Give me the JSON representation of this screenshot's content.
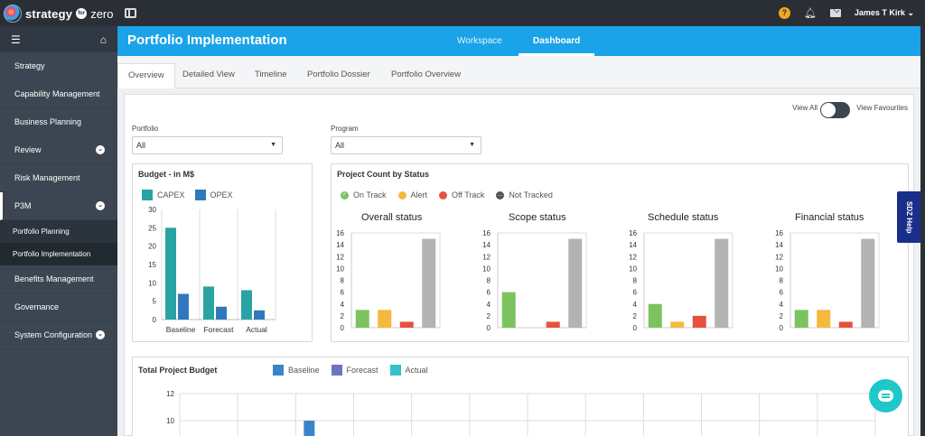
{
  "app": {
    "brand": "strategy",
    "brand_for": "for",
    "brand_zero": "zero"
  },
  "topbar": {
    "help_icon": "question-circle-icon",
    "user_name": "James T Kirk",
    "user_caret": "⌄"
  },
  "sidebar": {
    "items": [
      {
        "label": "Strategy",
        "has_chevron": false
      },
      {
        "label": "Capability Management",
        "has_chevron": false
      },
      {
        "label": "Business Planning",
        "has_chevron": false
      },
      {
        "label": "Review",
        "has_chevron": true
      },
      {
        "label": "Risk Management",
        "has_chevron": false
      },
      {
        "label": "P3M",
        "has_chevron": true,
        "expanded": true
      },
      {
        "label": "Portfolio Planning",
        "sub": true
      },
      {
        "label": "Portfolio Implementation",
        "sub": true,
        "current": true
      },
      {
        "label": "Benefits Management",
        "has_chevron": false
      },
      {
        "label": "Governance",
        "has_chevron": false
      },
      {
        "label": "System Configuration",
        "has_chevron": true
      }
    ]
  },
  "header": {
    "title": "Portfolio Implementation",
    "tabs": [
      {
        "label": "Workspace",
        "active": false
      },
      {
        "label": "Dashboard",
        "active": true
      }
    ]
  },
  "subtabs": [
    {
      "label": "Overview",
      "active": true
    },
    {
      "label": "Detailed View"
    },
    {
      "label": "Timeline"
    },
    {
      "label": "Portfolio Dossier"
    },
    {
      "label": "Portfolio Overview"
    }
  ],
  "filters": {
    "view_all": "View All",
    "view_favourites": "View Favourites",
    "portfolio_label": "Portfolio",
    "portfolio_value": "All",
    "program_label": "Program",
    "program_value": "All"
  },
  "colors": {
    "capex": "#2aa3a3",
    "opex": "#2f78bd",
    "on_track": "#7cc360",
    "alert": "#f4b93d",
    "off_track": "#e8503e",
    "not_tracked": "#b3b3b3",
    "baseline": "#3b84cc",
    "forecast": "#6f74c2",
    "actual": "#33c2c9"
  },
  "budget_card": {
    "title": "Budget - in M$",
    "legend": [
      "CAPEX",
      "OPEX"
    ]
  },
  "status_card": {
    "title": "Project Count by Status",
    "legend": [
      "On Track",
      "Alert",
      "Off Track",
      "Not Tracked"
    ]
  },
  "total_card": {
    "title": "Total Project Budget",
    "legend": [
      "Baseline",
      "Forecast",
      "Actual"
    ]
  },
  "chart_data": [
    {
      "type": "bar",
      "title": "Budget - in M$",
      "categories": [
        "Baseline",
        "Forecast",
        "Actual"
      ],
      "series": [
        {
          "name": "CAPEX",
          "values": [
            25,
            9,
            8
          ]
        },
        {
          "name": "OPEX",
          "values": [
            7,
            3.5,
            2.5
          ]
        }
      ],
      "ylim": [
        0,
        30
      ],
      "yticks": [
        0,
        5,
        10,
        15,
        20,
        25,
        30
      ]
    },
    {
      "type": "bar",
      "title": "Overall status",
      "categories": [
        "On Track",
        "Alert",
        "Off Track",
        "Not Tracked"
      ],
      "values": [
        3,
        3,
        1,
        15
      ],
      "ylim": [
        0,
        16
      ],
      "yticks": [
        0,
        2,
        4,
        6,
        8,
        10,
        12,
        14,
        16
      ]
    },
    {
      "type": "bar",
      "title": "Scope status",
      "categories": [
        "On Track",
        "Alert",
        "Off Track",
        "Not Tracked"
      ],
      "values": [
        6,
        0,
        1,
        15
      ],
      "ylim": [
        0,
        16
      ],
      "yticks": [
        0,
        2,
        4,
        6,
        8,
        10,
        12,
        14,
        16
      ]
    },
    {
      "type": "bar",
      "title": "Schedule status",
      "categories": [
        "On Track",
        "Alert",
        "Off Track",
        "Not Tracked"
      ],
      "values": [
        4,
        1,
        2,
        15
      ],
      "ylim": [
        0,
        16
      ],
      "yticks": [
        0,
        2,
        4,
        6,
        8,
        10,
        12,
        14,
        16
      ]
    },
    {
      "type": "bar",
      "title": "Financial status",
      "categories": [
        "On Track",
        "Alert",
        "Off Track",
        "Not Tracked"
      ],
      "values": [
        3,
        3,
        1,
        15
      ],
      "ylim": [
        0,
        16
      ],
      "yticks": [
        0,
        2,
        4,
        6,
        8,
        10,
        12,
        14,
        16
      ]
    },
    {
      "type": "bar",
      "title": "Total Project Budget",
      "series": [
        {
          "name": "Baseline",
          "values": [
            10
          ]
        },
        {
          "name": "Forecast",
          "values": []
        },
        {
          "name": "Actual",
          "values": []
        }
      ],
      "yticks": [
        10,
        12
      ]
    }
  ],
  "help_tab": "SDZ Help"
}
